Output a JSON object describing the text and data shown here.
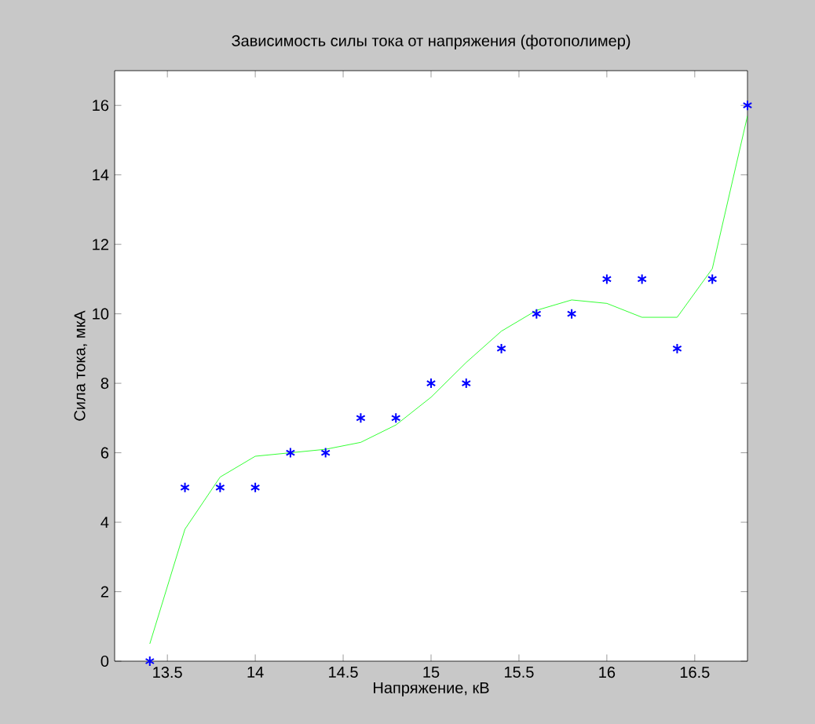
{
  "chart_data": {
    "type": "scatter",
    "title": "Зависимость силы тока от напряжения (фотополимер)",
    "xlabel": "Напряжение, кВ",
    "ylabel": "Сила тока, мкА",
    "xlim": [
      13.2,
      16.8
    ],
    "ylim": [
      0,
      17
    ],
    "xticks": [
      13.5,
      14,
      14.5,
      15,
      15.5,
      16,
      16.5
    ],
    "yticks": [
      0,
      2,
      4,
      6,
      8,
      10,
      12,
      14,
      16
    ],
    "grid": false,
    "series": [
      {
        "color": "#0000ff",
        "marker": "cross",
        "x": [
          13.4,
          13.6,
          13.8,
          14.0,
          14.2,
          14.4,
          14.6,
          14.8,
          15.0,
          15.2,
          15.4,
          15.6,
          15.8,
          16.0,
          16.2,
          16.4,
          16.6,
          16.8
        ],
        "values": [
          0,
          5,
          5,
          5,
          6,
          6,
          7,
          7,
          8,
          8,
          9,
          10,
          10,
          11,
          11,
          9,
          11,
          16
        ]
      },
      {
        "type": "line",
        "color": "#00ff00",
        "marker": "none",
        "line_style": "solid",
        "x": [
          13.4,
          13.6,
          13.8,
          14.0,
          14.2,
          14.4,
          14.6,
          14.8,
          15.0,
          15.2,
          15.4,
          15.6,
          15.8,
          16.0,
          16.2,
          16.4,
          16.6,
          16.8
        ],
        "values": [
          0.5,
          3.8,
          5.3,
          5.9,
          6.0,
          6.1,
          6.3,
          6.8,
          7.6,
          8.6,
          9.5,
          10.1,
          10.4,
          10.3,
          9.9,
          9.9,
          11.3,
          15.7
        ]
      }
    ]
  }
}
